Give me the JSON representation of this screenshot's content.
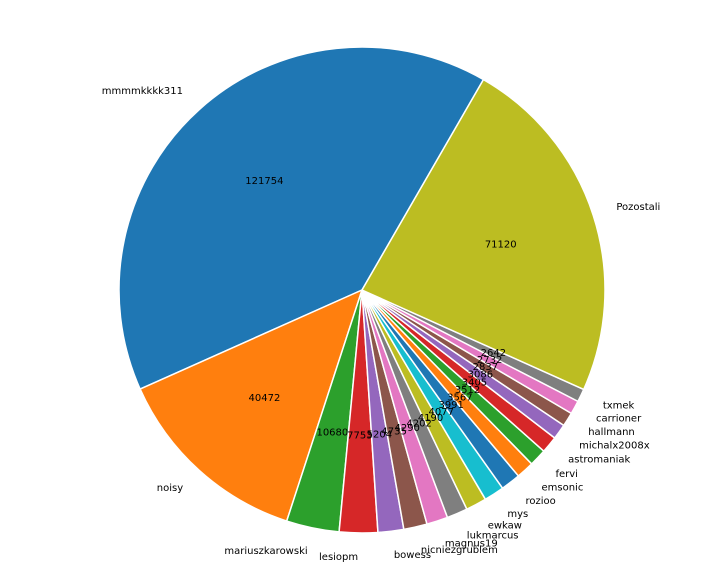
{
  "chart_data": {
    "type": "pie",
    "start_angle_deg": 60,
    "direction": "counterclockwise",
    "slices": [
      {
        "label": "mmmmkkkk311",
        "value": 121754,
        "color": "#1f77b4"
      },
      {
        "label": "noisy",
        "value": 40472,
        "color": "#ff7f0e"
      },
      {
        "label": "mariuszkarowski",
        "value": 10680,
        "color": "#2ca02c"
      },
      {
        "label": "lesiopm",
        "value": 7753,
        "color": "#d62728"
      },
      {
        "label": "bowess",
        "value": 5204,
        "color": "#9467bd"
      },
      {
        "label": "nicniezgrublem",
        "value": 4735,
        "color": "#8c564b"
      },
      {
        "label": "magnus19",
        "value": 4290,
        "color": "#e377c2"
      },
      {
        "label": "lukmarcus",
        "value": 4202,
        "color": "#7f7f7f"
      },
      {
        "label": "ewkaw",
        "value": 4190,
        "color": "#bcbd22"
      },
      {
        "label": "mys",
        "value": 4077,
        "color": "#17becf"
      },
      {
        "label": "rozioo",
        "value": 3991,
        "color": "#1f77b4"
      },
      {
        "label": "emsonic",
        "value": 3567,
        "color": "#ff7f0e"
      },
      {
        "label": "fervi",
        "value": 3512,
        "color": "#2ca02c"
      },
      {
        "label": "astromaniak",
        "value": 3405,
        "color": "#d62728"
      },
      {
        "label": "michalx2008x",
        "value": 3086,
        "color": "#9467bd"
      },
      {
        "label": "hallmann",
        "value": 2837,
        "color": "#8c564b"
      },
      {
        "label": "carrioner",
        "value": 2732,
        "color": "#e377c2"
      },
      {
        "label": "txmek",
        "value": 2642,
        "color": "#7f7f7f"
      },
      {
        "label": "Pozostali",
        "value": 71120,
        "color": "#bcbd22"
      }
    ]
  }
}
